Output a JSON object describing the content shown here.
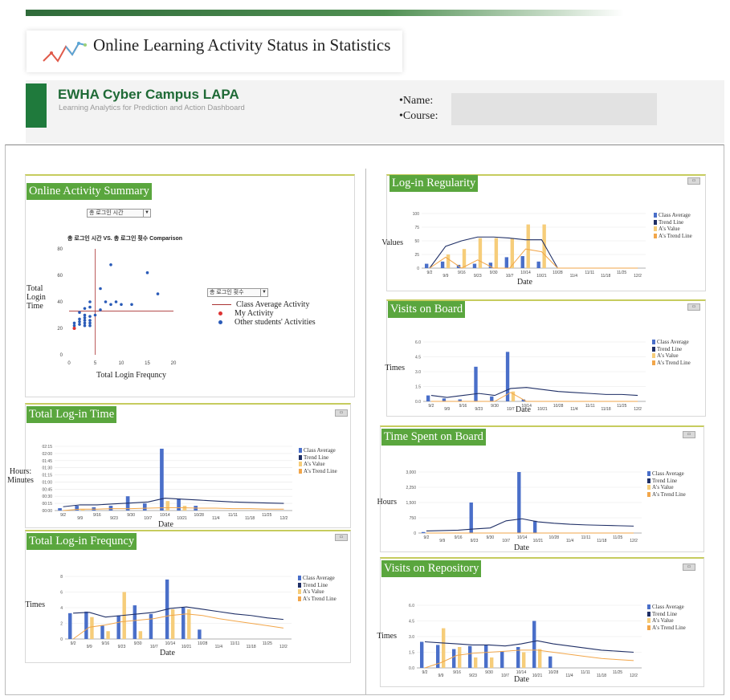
{
  "header": {
    "title": "Online Learning Activity Status in Statistics",
    "brand": "EWHA Cyber Campus LAPA",
    "brand_sub": "Learning Analytics for Prediction and Action Dashboard",
    "name_label": "•Name:",
    "course_label": "•Course:",
    "name_value": "",
    "course_value": ""
  },
  "colors": {
    "class_avg": "#4a6fc9",
    "trend": "#1f2f66",
    "a_value": "#f6cd7a",
    "a_trend": "#f2a64a",
    "panel_title": "#5aa63e",
    "brand": "#1f7a3c"
  },
  "icons": {
    "logo": "trend-line-logo-icon",
    "export": "export-button-icon"
  },
  "legend": {
    "class_avg": "Class Average",
    "trend": "Trend Line",
    "a_value": "A's Value",
    "a_trend": "A's Trend Line"
  },
  "summary": {
    "title": "Online Activity Summary",
    "select_value": "총 로그인 시간",
    "select2_value": "총 로그인 횟수",
    "ylabel": "Total Login Time",
    "xlabel": "Total Login Frequncy",
    "legend": {
      "avg": "Class Average Activity",
      "mine": "My Activity",
      "others": "Other students' Activities"
    },
    "chart_data": {
      "type": "scatter",
      "title": "총 로그인 시간 VS. 총 로그인 횟수 Comparison",
      "xlim": [
        0,
        20
      ],
      "ylim": [
        0,
        80
      ],
      "xticks": [
        0,
        5,
        10,
        15,
        20
      ],
      "yticks": [
        0,
        20,
        40,
        60,
        80
      ],
      "avg_line": {
        "x": 5,
        "y": 33
      },
      "points": [
        [
          1,
          22
        ],
        [
          1,
          24
        ],
        [
          1,
          20
        ],
        [
          2,
          23
        ],
        [
          2,
          25
        ],
        [
          2,
          27
        ],
        [
          3,
          22
        ],
        [
          3,
          26
        ],
        [
          3,
          28
        ],
        [
          3,
          30
        ],
        [
          3,
          24
        ],
        [
          4,
          22
        ],
        [
          4,
          24
        ],
        [
          4,
          26
        ],
        [
          4,
          29
        ],
        [
          4,
          36
        ],
        [
          4,
          40
        ],
        [
          2,
          32
        ],
        [
          3,
          35
        ],
        [
          6,
          34
        ],
        [
          5,
          30
        ],
        [
          7,
          40
        ],
        [
          8,
          38
        ],
        [
          8,
          68
        ],
        [
          9,
          40
        ],
        [
          10,
          38
        ],
        [
          12,
          38
        ],
        [
          15,
          62
        ],
        [
          17,
          46
        ],
        [
          6,
          50
        ]
      ],
      "my": [
        [
          1,
          20
        ]
      ]
    }
  },
  "dates": [
    "9/2",
    "9/9",
    "9/16",
    "9/23",
    "9/30",
    "10/7",
    "10/14",
    "10/21",
    "10/28",
    "11/4",
    "11/11",
    "11/18",
    "11/25",
    "12/2"
  ],
  "regularity": {
    "title": "Log-in Regularity",
    "ylabel": "Values",
    "xlabel": "Date",
    "chart_data": {
      "type": "bar",
      "ylim": [
        0,
        100
      ],
      "yticks": [
        0,
        25,
        50,
        75,
        100
      ],
      "series": [
        {
          "name": "Class Average",
          "values": [
            8,
            12,
            6,
            8,
            10,
            20,
            22,
            12,
            0,
            0,
            0,
            0,
            0,
            0
          ]
        },
        {
          "name": "Trend Line",
          "values": [
            0,
            40,
            50,
            57,
            57,
            55,
            52,
            52,
            0,
            0,
            0,
            0,
            0,
            0
          ]
        },
        {
          "name": "A's Value",
          "values": [
            0,
            25,
            35,
            55,
            55,
            55,
            80,
            80,
            0,
            0,
            0,
            0,
            0,
            0
          ]
        },
        {
          "name": "A's Trend Line",
          "values": [
            0,
            20,
            0,
            15,
            0,
            0,
            35,
            30,
            0,
            0,
            0,
            0,
            0,
            0
          ]
        }
      ]
    }
  },
  "visits_board": {
    "title": "Visits on Board",
    "ylabel": "Times",
    "xlabel": "Date",
    "chart_data": {
      "type": "bar",
      "ylim": [
        0,
        6
      ],
      "yticks": [
        "0.0",
        "1.5",
        "3.0",
        "4.5",
        "6.0"
      ],
      "series": [
        {
          "name": "Class Average",
          "values": [
            0.6,
            0.3,
            0.2,
            3.5,
            0.5,
            5.0,
            0.2,
            0,
            0,
            0,
            0,
            0,
            0,
            0
          ]
        },
        {
          "name": "Trend Line",
          "values": [
            0.6,
            0.4,
            0.6,
            0.8,
            0.6,
            1.3,
            1.4,
            1.2,
            1.0,
            0.9,
            0.8,
            0.7,
            0.7,
            0.6
          ]
        },
        {
          "name": "A's Value",
          "values": [
            0,
            0,
            0,
            0,
            0,
            1.0,
            0,
            0,
            0,
            0,
            0,
            0,
            0,
            0
          ]
        },
        {
          "name": "A's Trend Line",
          "values": [
            0,
            0,
            0,
            0,
            0,
            0.9,
            0,
            0,
            0,
            0,
            0,
            0,
            0,
            0
          ]
        }
      ]
    }
  },
  "login_time": {
    "title": "Total Log-in Time",
    "ylabel": "Hours: Minutes",
    "xlabel": "Date",
    "chart_data": {
      "type": "bar",
      "yticks": [
        "00:00",
        "00:15",
        "00:30",
        "00:45",
        "01:00",
        "01:15",
        "01:30",
        "01:45",
        "02:00",
        "02:15"
      ],
      "series": [
        {
          "name": "Class Average",
          "values": [
            5,
            10,
            7,
            10,
            30,
            15,
            130,
            25,
            10,
            0,
            0,
            0,
            0,
            0
          ]
        },
        {
          "name": "Trend Line",
          "values": [
            8,
            12,
            12,
            14,
            16,
            18,
            26,
            24,
            22,
            20,
            18,
            17,
            16,
            15
          ]
        },
        {
          "name": "A's Value",
          "values": [
            0,
            2,
            0,
            0,
            0,
            0,
            20,
            10,
            0,
            0,
            0,
            0,
            0,
            0
          ]
        },
        {
          "name": "A's Trend Line",
          "values": [
            0,
            3,
            3,
            4,
            4,
            5,
            6,
            6,
            5,
            5,
            4,
            4,
            3,
            3
          ]
        }
      ]
    }
  },
  "visits_time": {
    "title": "Time Spent on Board",
    "ylabel": "Hours",
    "xlabel": "Date",
    "chart_data": {
      "type": "bar",
      "yticks": [
        "0",
        "750",
        "1,500",
        "2,250",
        "3,000"
      ],
      "series": [
        {
          "name": "Class Average",
          "values": [
            50,
            20,
            0,
            1500,
            0,
            0,
            3000,
            600,
            0,
            0,
            0,
            0,
            0,
            0
          ]
        },
        {
          "name": "Trend Line",
          "values": [
            100,
            120,
            140,
            200,
            250,
            600,
            700,
            550,
            480,
            430,
            400,
            380,
            360,
            340
          ]
        },
        {
          "name": "A's Value",
          "values": [
            0,
            0,
            0,
            0,
            0,
            0,
            0,
            0,
            0,
            0,
            0,
            0,
            0,
            0
          ]
        },
        {
          "name": "A's Trend Line",
          "values": [
            0,
            0,
            0,
            0,
            0,
            0,
            0,
            0,
            0,
            0,
            0,
            0,
            0,
            0
          ]
        }
      ]
    }
  },
  "login_freq": {
    "title": "Total Log-in Frequncy",
    "ylabel": "Times",
    "xlabel": "Date",
    "chart_data": {
      "type": "bar",
      "yticks": [
        0,
        2,
        4,
        6,
        8
      ],
      "series": [
        {
          "name": "Class Average",
          "values": [
            3.3,
            3.5,
            1.7,
            3.0,
            4.3,
            3.2,
            7.6,
            4.0,
            1.2,
            0,
            0,
            0,
            0,
            0
          ]
        },
        {
          "name": "Trend Line",
          "values": [
            3.3,
            3.4,
            2.8,
            3.0,
            3.2,
            3.4,
            3.9,
            4.1,
            3.8,
            3.5,
            3.2,
            3.0,
            2.7,
            2.5
          ]
        },
        {
          "name": "A's Value",
          "values": [
            0,
            2.8,
            1.0,
            6.0,
            1.0,
            0,
            3.8,
            3.8,
            0,
            0,
            0,
            0,
            0,
            0
          ]
        },
        {
          "name": "A's Trend Line",
          "values": [
            0,
            1.5,
            1.8,
            2.2,
            2.4,
            2.6,
            3.0,
            3.2,
            3.0,
            2.6,
            2.3,
            2.0,
            1.7,
            1.4
          ]
        }
      ]
    }
  },
  "visits_repo": {
    "title": "Visits on Repository",
    "ylabel": "Times",
    "xlabel": "Date",
    "chart_data": {
      "type": "bar",
      "yticks": [
        "0.0",
        "1.5",
        "3.0",
        "4.5",
        "6.0"
      ],
      "series": [
        {
          "name": "Class Average",
          "values": [
            2.5,
            2.2,
            1.8,
            2.1,
            2.2,
            1.6,
            2.0,
            4.5,
            1.1,
            0,
            0,
            0,
            0,
            0
          ]
        },
        {
          "name": "Trend Line",
          "values": [
            2.5,
            2.4,
            2.3,
            2.2,
            2.2,
            2.1,
            2.3,
            2.6,
            2.3,
            2.1,
            1.9,
            1.7,
            1.6,
            1.5
          ]
        },
        {
          "name": "A's Value",
          "values": [
            0,
            3.8,
            2.0,
            1.0,
            1.0,
            0,
            1.5,
            1.8,
            0,
            0,
            0,
            0,
            0,
            0
          ]
        },
        {
          "name": "A's Trend Line",
          "values": [
            0,
            0.5,
            1.2,
            1.4,
            1.5,
            1.6,
            1.7,
            1.7,
            1.5,
            1.3,
            1.1,
            0.9,
            0.8,
            0.7
          ]
        }
      ]
    }
  }
}
